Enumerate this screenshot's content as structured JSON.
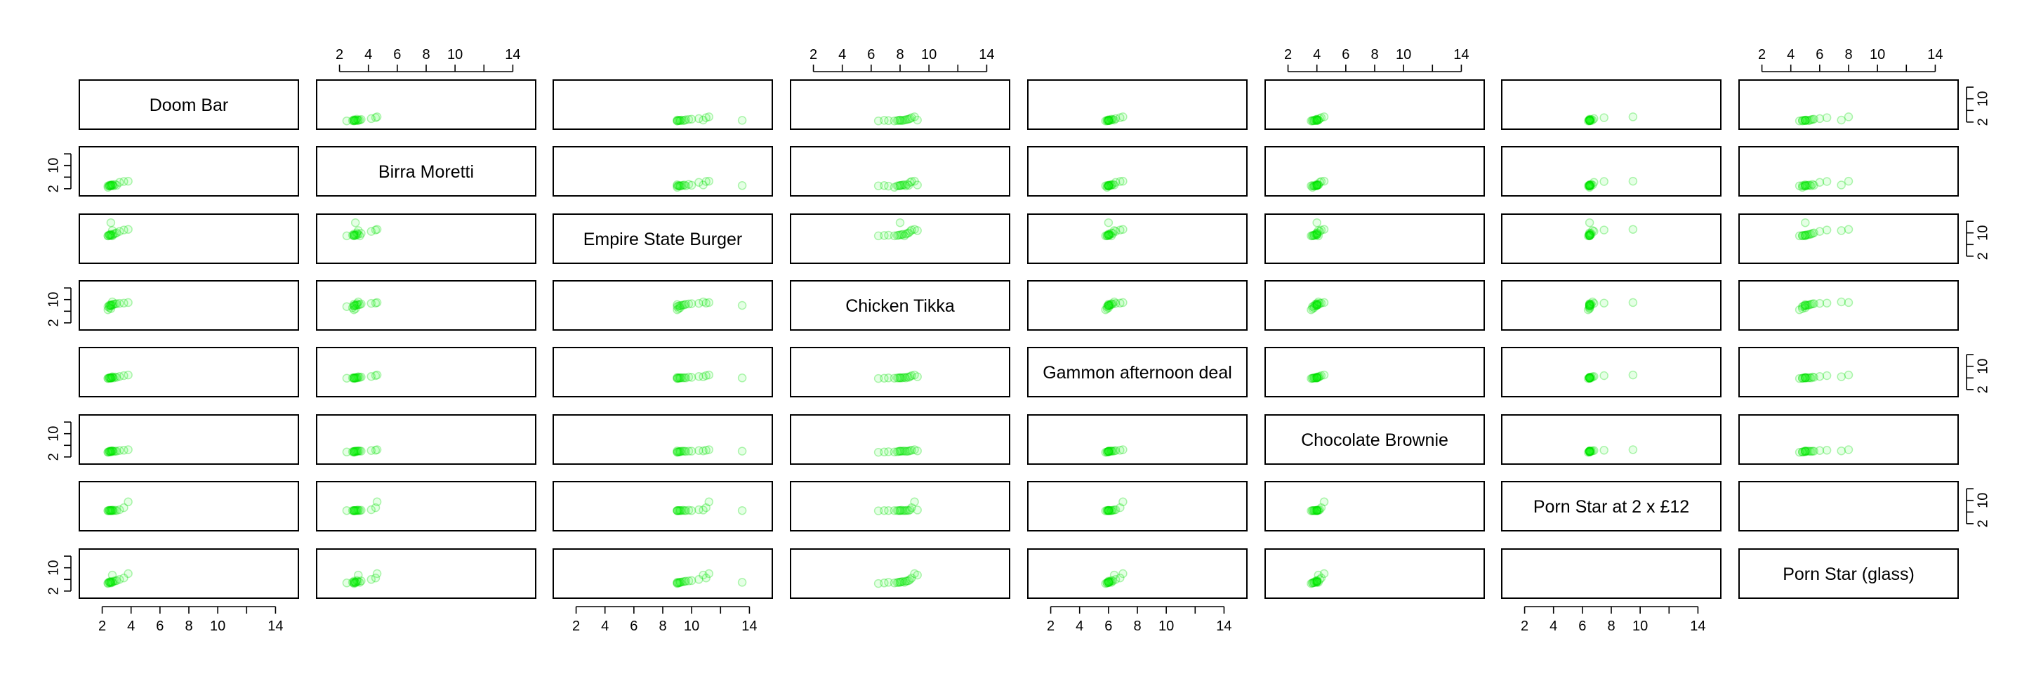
{
  "chart_data": {
    "type": "scatter",
    "kind": "scatterplot-matrix",
    "title": "",
    "variables": [
      "Doom Bar",
      "Birra Moretti",
      "Empire State Burger",
      "Chicken Tikka",
      "Gammon afternoon deal",
      "Chocolate Brownie",
      "Porn Star at 2 x £12",
      "Porn Star (glass)"
    ],
    "x_ticks": [
      2,
      4,
      6,
      8,
      10,
      14
    ],
    "y_ticks": [
      2,
      10
    ],
    "x_range": [
      1,
      15
    ],
    "y_range": [
      1,
      15
    ],
    "point_color": "#00ff00",
    "point_alpha": 0.15,
    "grid": false,
    "typical_values": [
      2.5,
      3.5,
      9.5,
      8.0,
      6.0,
      4.0,
      6.5,
      5.0
    ],
    "observations": [
      [
        2.4,
        2.5,
        9.0,
        7.6,
        5.9,
        3.7,
        6.5,
        4.8
      ],
      [
        2.5,
        3.0,
        9.1,
        7.8,
        6.0,
        3.8,
        6.5,
        4.9
      ],
      [
        2.6,
        3.0,
        9.2,
        7.9,
        6.0,
        3.9,
        6.5,
        5.0
      ],
      [
        2.7,
        3.1,
        9.3,
        8.0,
        6.1,
        4.0,
        6.5,
        5.1
      ],
      [
        2.5,
        3.2,
        9.4,
        8.1,
        6.0,
        4.0,
        6.6,
        5.2
      ],
      [
        2.6,
        3.3,
        9.5,
        8.2,
        6.1,
        4.0,
        6.5,
        5.3
      ],
      [
        2.7,
        3.4,
        9.0,
        8.3,
        6.2,
        4.1,
        6.5,
        5.0
      ],
      [
        2.8,
        3.0,
        9.6,
        8.4,
        6.0,
        3.9,
        6.5,
        5.4
      ],
      [
        2.9,
        3.5,
        9.8,
        8.5,
        6.3,
        4.0,
        6.6,
        5.5
      ],
      [
        3.0,
        3.2,
        10.0,
        8.6,
        6.2,
        4.0,
        6.5,
        5.6
      ],
      [
        3.2,
        4.2,
        10.5,
        8.7,
        6.5,
        4.2,
        6.8,
        6.0
      ],
      [
        3.5,
        4.5,
        11.0,
        8.8,
        6.8,
        4.3,
        7.5,
        6.5
      ],
      [
        3.8,
        4.6,
        11.2,
        9.0,
        7.0,
        4.5,
        9.5,
        8.0
      ],
      [
        2.4,
        3.0,
        9.0,
        6.5,
        5.8,
        3.6,
        6.4,
        4.6
      ],
      [
        2.6,
        3.1,
        9.1,
        6.9,
        5.9,
        3.7,
        6.5,
        4.8
      ],
      [
        2.5,
        2.9,
        9.2,
        7.2,
        6.0,
        3.8,
        6.5,
        5.0
      ],
      [
        2.7,
        3.3,
        10.8,
        9.2,
        6.4,
        4.1,
        6.7,
        7.5
      ],
      [
        2.6,
        3.1,
        13.5,
        8.0,
        6.0,
        4.0,
        6.5,
        5.0
      ]
    ],
    "panels": [
      {
        "row": 0,
        "col": 0,
        "label": "Doom Bar"
      },
      {
        "row": 1,
        "col": 1,
        "label": "Birra Moretti"
      },
      {
        "row": 2,
        "col": 2,
        "label": "Empire State Burger"
      },
      {
        "row": 3,
        "col": 3,
        "label": "Chicken Tikka"
      },
      {
        "row": 4,
        "col": 4,
        "label": "Gammon afternoon deal"
      },
      {
        "row": 5,
        "col": 5,
        "label": "Chocolate Brownie"
      },
      {
        "row": 6,
        "col": 6,
        "label": "Porn Star at 2 x £12"
      },
      {
        "row": 7,
        "col": 7,
        "label": "Porn Star (glass)"
      }
    ]
  }
}
